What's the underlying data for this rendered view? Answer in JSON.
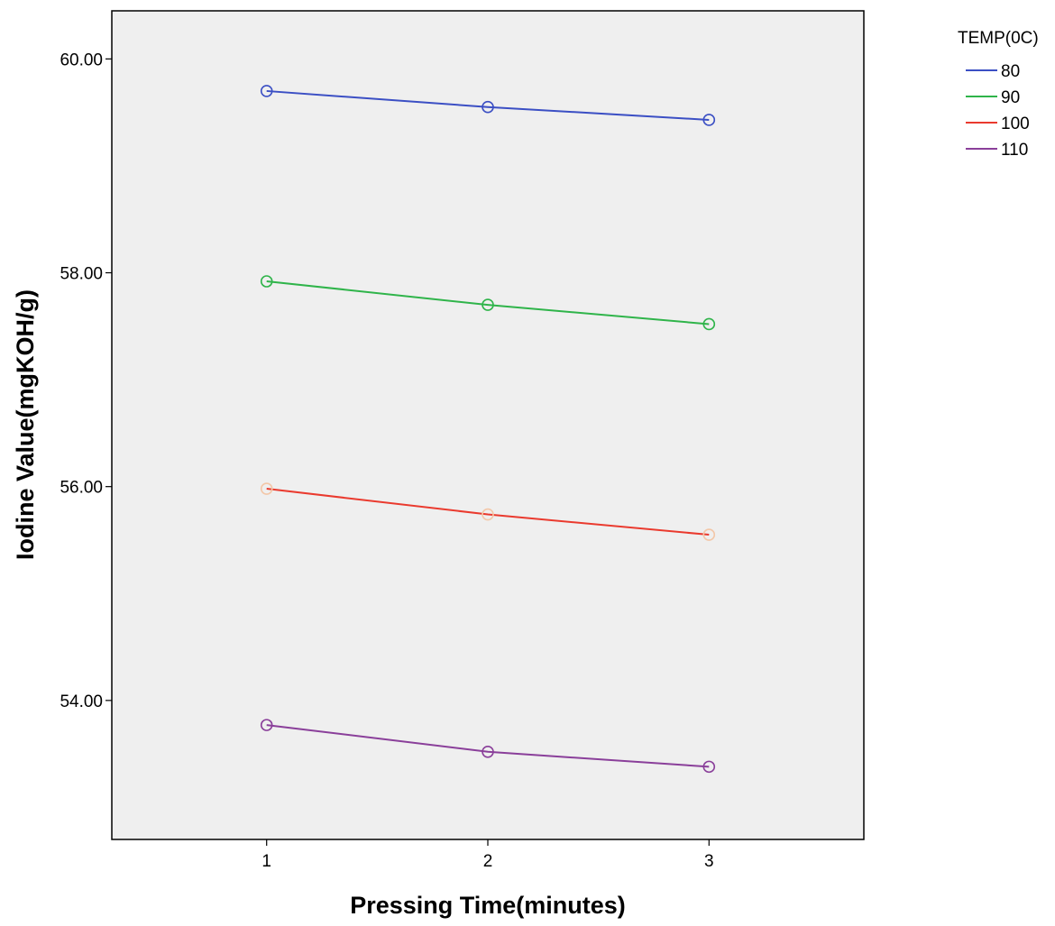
{
  "chart_data": {
    "type": "line",
    "xlabel": "Pressing Time(minutes)",
    "ylabel": "Iodine Value(mgKOH/g)",
    "x": [
      1,
      2,
      3
    ],
    "x_tick_labels": [
      "1",
      "2",
      "3"
    ],
    "xlim": [
      0.3,
      3.7
    ],
    "ylim": [
      52.7,
      60.45
    ],
    "y_ticks": [
      54,
      56,
      58,
      60
    ],
    "y_tick_labels": [
      "54.00",
      "56.00",
      "58.00",
      "60.00"
    ],
    "grid": false,
    "legend": {
      "title": "TEMP(0C)",
      "placement": "top-right, outside plot"
    },
    "plot_background": "#efefef",
    "series": [
      {
        "name": "80",
        "color": "#3b4fc4",
        "marker_color": "#3b4fc4",
        "values": [
          59.7,
          59.55,
          59.43
        ]
      },
      {
        "name": "90",
        "color": "#2fb44a",
        "marker_color": "#2fb44a",
        "values": [
          57.92,
          57.7,
          57.52
        ]
      },
      {
        "name": "100",
        "color": "#ea3a2e",
        "marker_color": "#f3c7a8",
        "values": [
          55.98,
          55.74,
          55.55
        ]
      },
      {
        "name": "110",
        "color": "#8a3f9a",
        "marker_color": "#8a3f9a",
        "values": [
          53.77,
          53.52,
          53.38
        ]
      }
    ]
  }
}
